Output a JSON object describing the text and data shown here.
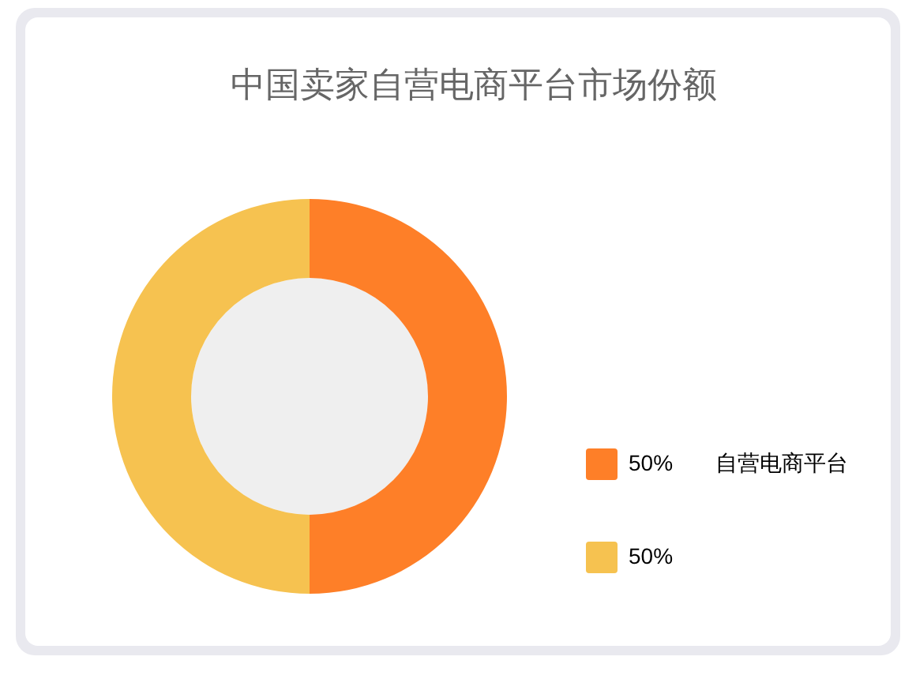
{
  "chart_data": {
    "type": "donut",
    "title": "中国卖家自营电商平台市场份额",
    "categories": [
      "自营电商平台",
      null
    ],
    "values": [
      50,
      50
    ],
    "value_labels": [
      "50%",
      "50%"
    ],
    "colors": [
      "#fe7f28",
      "#f6c250"
    ],
    "legend": "bottom right"
  }
}
